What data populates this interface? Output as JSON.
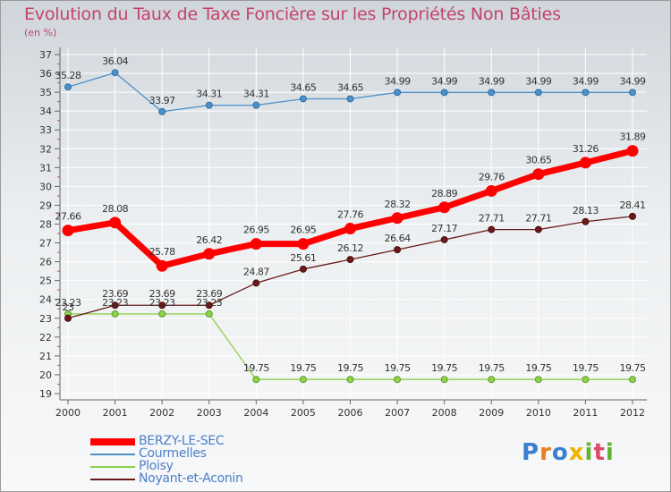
{
  "title": "Evolution du Taux de Taxe Foncière sur les Propriétés Non Bâties",
  "unit_label": "(en %)",
  "logo_text": "Proxiti",
  "chart_data": {
    "type": "line",
    "title": "Evolution du Taux de Taxe Foncière sur les Propriétés Non Bâties",
    "ylabel": "(en %)",
    "xlabel": "",
    "ylim": [
      19,
      37
    ],
    "yticks": [
      19,
      20,
      21,
      22,
      23,
      24,
      25,
      26,
      27,
      28,
      29,
      30,
      31,
      32,
      33,
      34,
      35,
      36,
      37
    ],
    "categories": [
      "2000",
      "2001",
      "2002",
      "2003",
      "2004",
      "2005",
      "2006",
      "2007",
      "2008",
      "2009",
      "2010",
      "2011",
      "2012"
    ],
    "legend_position": "bottom-left",
    "series": [
      {
        "name": "BERZY-LE-SEC",
        "color": "#ff0000",
        "values": [
          27.66,
          28.08,
          25.78,
          26.42,
          26.95,
          26.95,
          27.76,
          28.32,
          28.89,
          29.76,
          30.65,
          31.26,
          31.89
        ],
        "labels": [
          "27.66",
          "28.08",
          "25.78",
          "26.42",
          "26.95",
          "26.95",
          "27.76",
          "28.32",
          "28.89",
          "29.76",
          "30.65",
          "31.26",
          "31.89"
        ]
      },
      {
        "name": "Courmelles",
        "color": "#4d90c8",
        "values": [
          35.28,
          36.04,
          33.97,
          34.31,
          34.31,
          34.65,
          34.65,
          34.99,
          34.99,
          34.99,
          34.99,
          34.99,
          34.99
        ],
        "labels": [
          "35.28",
          "36.04",
          "33.97",
          "34.31",
          "34.31",
          "34.65",
          "34.65",
          "34.99",
          "34.99",
          "34.99",
          "34.99",
          "34.99",
          "34.99"
        ]
      },
      {
        "name": "Ploisy",
        "color": "#8ed24a",
        "values": [
          23.23,
          23.23,
          23.23,
          23.23,
          19.75,
          19.75,
          19.75,
          19.75,
          19.75,
          19.75,
          19.75,
          19.75,
          19.75
        ],
        "labels": [
          "23.23",
          "23.23",
          "23.23",
          "23.23",
          "19.75",
          "19.75",
          "19.75",
          "19.75",
          "19.75",
          "19.75",
          "19.75",
          "19.75",
          "19.75"
        ]
      },
      {
        "name": "Noyant-et-Aconin",
        "color": "#6b1a1a",
        "values": [
          23.0,
          23.69,
          23.69,
          23.69,
          24.87,
          25.61,
          26.12,
          26.64,
          27.17,
          27.71,
          27.71,
          28.13,
          28.41
        ],
        "labels": [
          "23",
          "23.69",
          "23.69",
          "23.69",
          "24.87",
          "25.61",
          "26.12",
          "26.64",
          "27.17",
          "27.71",
          "27.71",
          "28.13",
          "28.41"
        ]
      }
    ]
  }
}
